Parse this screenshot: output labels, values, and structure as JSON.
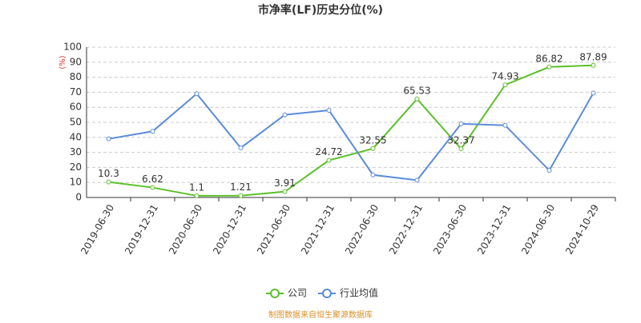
{
  "chart_data": {
    "type": "line",
    "title": "市净率(LF)历史分位(%)",
    "y_label": "(%)",
    "categories": [
      "2019-06-30",
      "2019-12-31",
      "2020-06-30",
      "2020-12-31",
      "2021-06-30",
      "2021-12-31",
      "2022-06-30",
      "2022-12-31",
      "2023-06-30",
      "2023-12-31",
      "2024-06-30",
      "2024-10-29"
    ],
    "series": [
      {
        "name": "公司",
        "color": "#5cbf2a",
        "values": [
          10.3,
          6.62,
          1.1,
          1.21,
          3.91,
          24.72,
          32.55,
          65.53,
          32.37,
          74.93,
          86.82,
          87.89
        ],
        "show_labels": true
      },
      {
        "name": "行业均值",
        "color": "#5b8bd9",
        "values": [
          39,
          44,
          69,
          33,
          55,
          58,
          15,
          11.5,
          49,
          48,
          18,
          69.5
        ],
        "show_labels": false
      }
    ],
    "ylim": [
      0,
      100
    ],
    "yticks": [
      0,
      10,
      20,
      30,
      40,
      50,
      60,
      70,
      80,
      90,
      100
    ],
    "grid": true,
    "footer": "制图数据来自恒生聚源数据库"
  }
}
